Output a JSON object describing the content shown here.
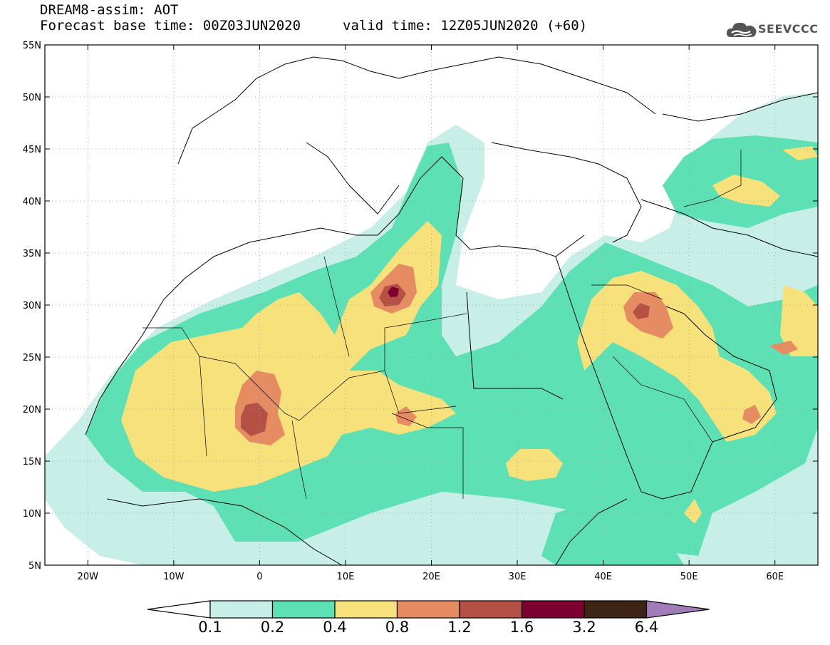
{
  "header": {
    "title": "DREAM8-assim: AOT",
    "base_time": "Forecast base time: 00Z03JUN2020",
    "valid_time": "valid time: 12Z05JUN2020 (+60)",
    "brand": "SEEVCCC"
  },
  "axes": {
    "lat_labels": [
      "55N",
      "50N",
      "45N",
      "40N",
      "35N",
      "30N",
      "25N",
      "20N",
      "15N",
      "10N",
      "5N"
    ],
    "lat_values": [
      55,
      50,
      45,
      40,
      35,
      30,
      25,
      20,
      15,
      10,
      5
    ],
    "lon_labels": [
      "20W",
      "10W",
      "0",
      "10E",
      "20E",
      "30E",
      "40E",
      "50E",
      "60E"
    ],
    "lon_values": [
      -20,
      -10,
      0,
      10,
      20,
      30,
      40,
      50,
      60
    ],
    "lon_range": [
      -25,
      65
    ],
    "lat_range": [
      5,
      55
    ],
    "grid": "dotted"
  },
  "colorbar": {
    "labels": [
      "0.1",
      "0.2",
      "0.4",
      "0.8",
      "1.2",
      "1.6",
      "3.2",
      "6.4"
    ],
    "colors": [
      "#ffffff",
      "#c7efe7",
      "#5ee0b5",
      "#f7e17a",
      "#e58c62",
      "#b55045",
      "#7e0030",
      "#3d2414",
      "#a07cb8"
    ]
  }
}
